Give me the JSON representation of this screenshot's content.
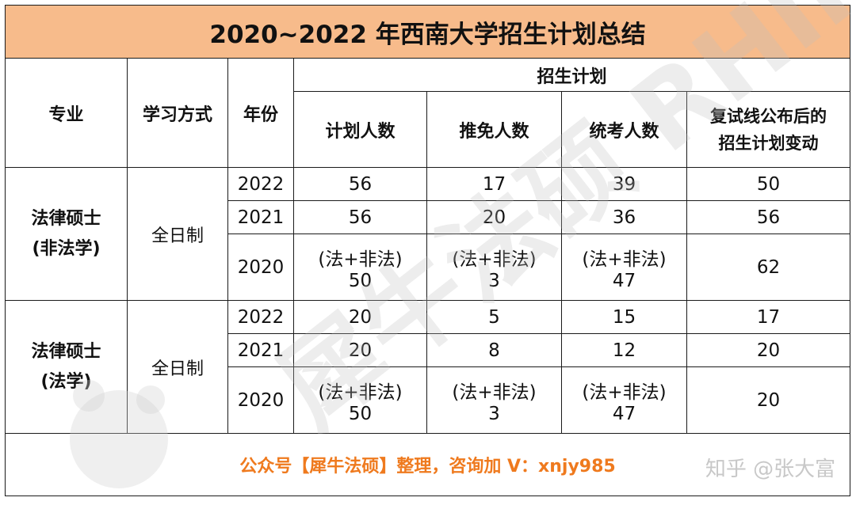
{
  "title": "2020~2022 年西南大学招生计划总结",
  "headers": {
    "major": "专业",
    "study_mode": "学习方式",
    "year": "年份",
    "plan_group": "招生计划",
    "planned": "计划人数",
    "recommended": "推免人数",
    "unified": "统考人数",
    "change_line1": "复试线公布后的",
    "change_line2": "招生计划变动"
  },
  "groups": [
    {
      "major_line1": "法律硕士",
      "major_line2": "(非法学)",
      "mode": "全日制",
      "rows": [
        {
          "year": "2022",
          "planned": "56",
          "recommended": "17",
          "unified": "39",
          "change": "50"
        },
        {
          "year": "2021",
          "planned": "56",
          "recommended": "20",
          "unified": "36",
          "change": "56"
        },
        {
          "year": "2020",
          "planned_note": "(法+非法)",
          "planned": "50",
          "recommended_note": "(法+非法)",
          "recommended": "3",
          "unified_note": "(法+非法)",
          "unified": "47",
          "change": "62"
        }
      ]
    },
    {
      "major_line1": "法律硕士",
      "major_line2": "(法学)",
      "mode": "全日制",
      "rows": [
        {
          "year": "2022",
          "planned": "20",
          "recommended": "5",
          "unified": "15",
          "change": "17"
        },
        {
          "year": "2021",
          "planned": "20",
          "recommended": "8",
          "unified": "12",
          "change": "20"
        },
        {
          "year": "2020",
          "planned_note": "(法+非法)",
          "planned": "50",
          "recommended_note": "(法+非法)",
          "recommended": "3",
          "unified_note": "(法+非法)",
          "unified": "47",
          "change": "20"
        }
      ]
    }
  ],
  "footer": "公众号【犀牛法硕】整理，咨询加 V：xnjy985",
  "credit": "知乎 @张大富",
  "watermark": "犀牛法硕 RHINOS",
  "colors": {
    "title_bg": "#f7bb8b",
    "footer_text": "#ef7a1e",
    "watermark": "#d0d0d0"
  }
}
